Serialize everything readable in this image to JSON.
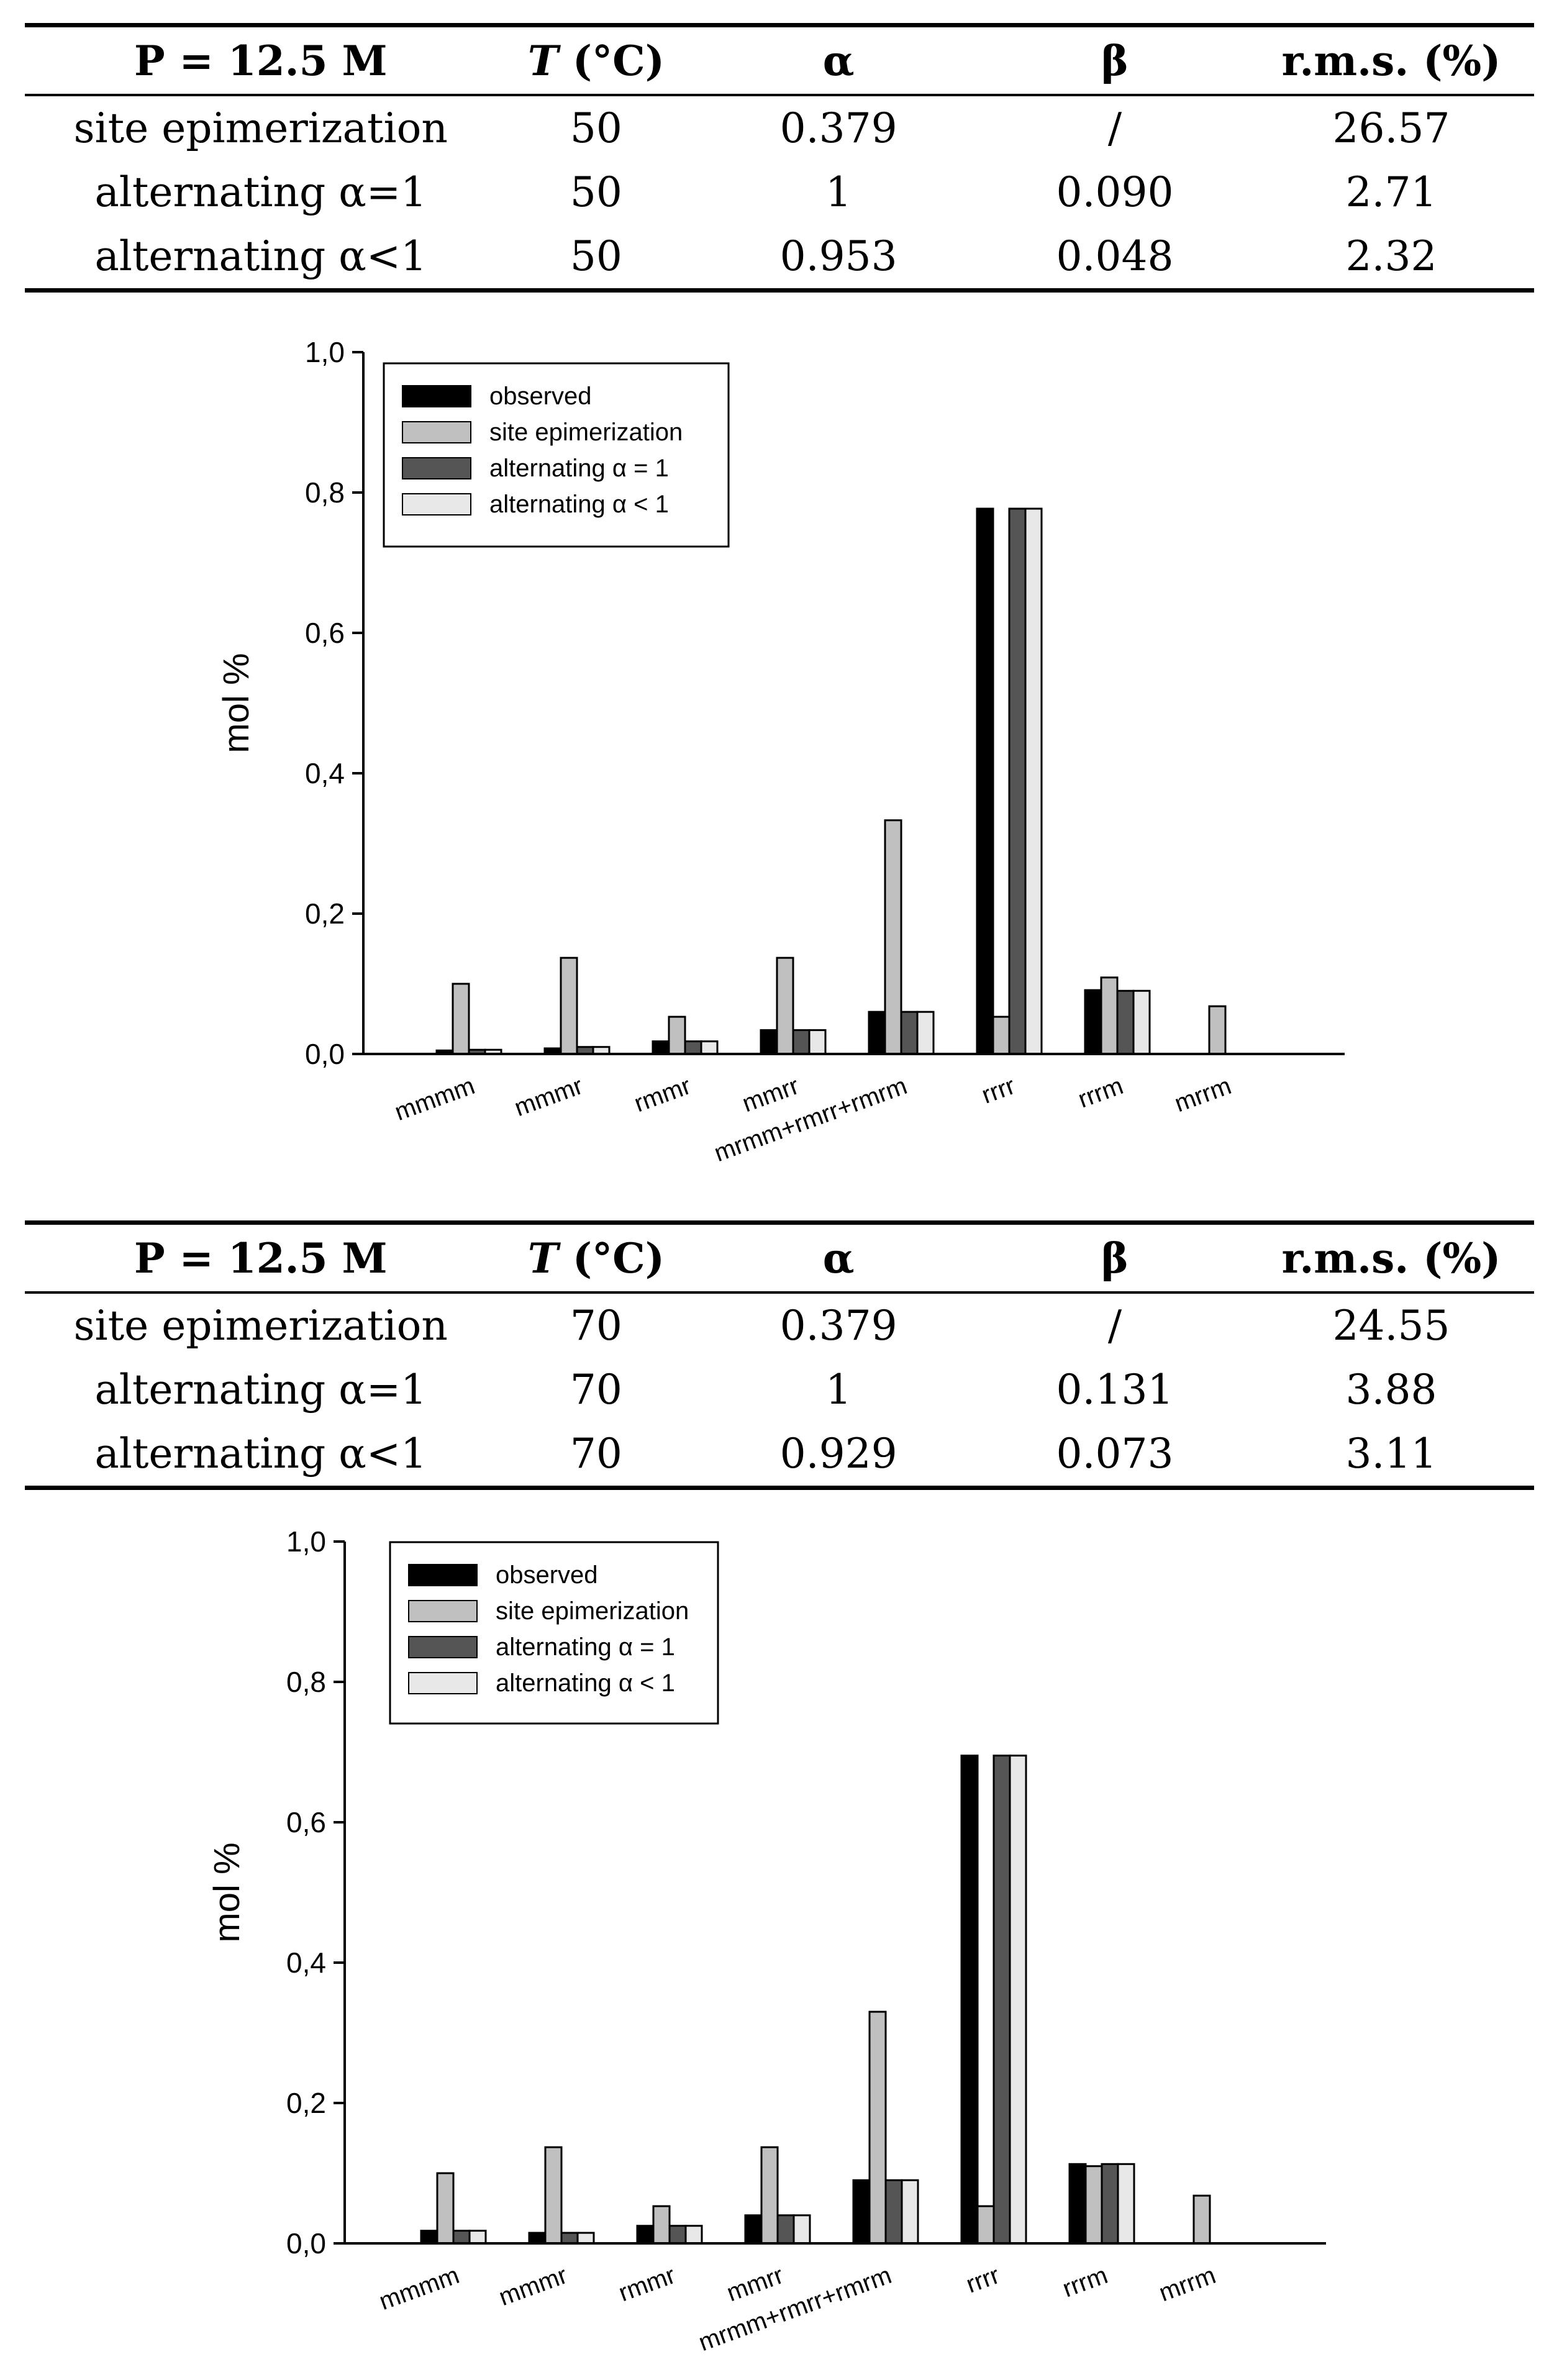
{
  "tables": [
    {
      "headers": [
        "P = 12.5 M",
        "T",
        " (°C)",
        "α",
        "β",
        "r.m.s. (%)"
      ],
      "rows": [
        [
          "site epimerization",
          "50",
          "0.379",
          "/",
          "26.57"
        ],
        [
          "alternating α=1",
          "50",
          "1",
          "0.090",
          "2.71"
        ],
        [
          "alternating α<1",
          "50",
          "0.953",
          "0.048",
          "2.32"
        ]
      ]
    },
    {
      "headers": [
        "P = 12.5 M",
        "T",
        " (°C)",
        "α",
        "β",
        "r.m.s. (%)"
      ],
      "rows": [
        [
          "site epimerization",
          "70",
          "0.379",
          "/",
          "24.55"
        ],
        [
          "alternating α=1",
          "70",
          "1",
          "0.131",
          "3.88"
        ],
        [
          "alternating α<1",
          "70",
          "0.929",
          "0.073",
          "3.11"
        ]
      ]
    }
  ],
  "colors": {
    "observed": "#000000",
    "site_epimerization": "#c0c0c0",
    "alternating_1": "#555555",
    "alternating_lt1": "#e8e8e8"
  },
  "chart_data": [
    {
      "type": "bar",
      "title": "",
      "xlabel": "",
      "ylabel": "mol %",
      "ylim": [
        0,
        1.0
      ],
      "yticks": [
        "0,0",
        "0,2",
        "0,4",
        "0,6",
        "0,8",
        "1,0"
      ],
      "legend_position": "top-left",
      "categories": [
        "mmmm",
        "mmmr",
        "rmmr",
        "mmrr",
        "mrmm+rmrr+rmrm",
        "rrrr",
        "rrrm",
        "mrrm"
      ],
      "series": [
        {
          "name": "observed",
          "values": [
            0.005,
            0.008,
            0.018,
            0.034,
            0.06,
            0.777,
            0.091,
            0.0
          ]
        },
        {
          "name": "site epimerization",
          "values": [
            0.1,
            0.137,
            0.053,
            0.137,
            0.333,
            0.053,
            0.109,
            0.068
          ]
        },
        {
          "name": "alternating α = 1",
          "values": [
            0.006,
            0.01,
            0.018,
            0.034,
            0.06,
            0.777,
            0.09,
            0.0
          ]
        },
        {
          "name": "alternating α < 1",
          "values": [
            0.006,
            0.01,
            0.018,
            0.034,
            0.06,
            0.777,
            0.09,
            0.0
          ]
        }
      ]
    },
    {
      "type": "bar",
      "title": "",
      "xlabel": "",
      "ylabel": "mol %",
      "ylim": [
        0,
        1.0
      ],
      "yticks": [
        "0,0",
        "0,2",
        "0,4",
        "0,6",
        "0,8",
        "1,0"
      ],
      "legend_position": "top-left",
      "categories": [
        "mmmm",
        "mmmr",
        "rmmr",
        "mmrr",
        "mrmm+rmrr+rmrm",
        "rrrr",
        "rrrm",
        "mrrm"
      ],
      "series": [
        {
          "name": "observed",
          "values": [
            0.018,
            0.015,
            0.025,
            0.04,
            0.09,
            0.695,
            0.113,
            0.0
          ]
        },
        {
          "name": "site epimerization",
          "values": [
            0.1,
            0.137,
            0.053,
            0.137,
            0.33,
            0.053,
            0.11,
            0.068
          ]
        },
        {
          "name": "alternating α = 1",
          "values": [
            0.018,
            0.015,
            0.025,
            0.04,
            0.09,
            0.695,
            0.113,
            0.0
          ]
        },
        {
          "name": "alternating α < 1",
          "values": [
            0.018,
            0.015,
            0.025,
            0.04,
            0.09,
            0.695,
            0.113,
            0.0
          ]
        }
      ]
    }
  ]
}
